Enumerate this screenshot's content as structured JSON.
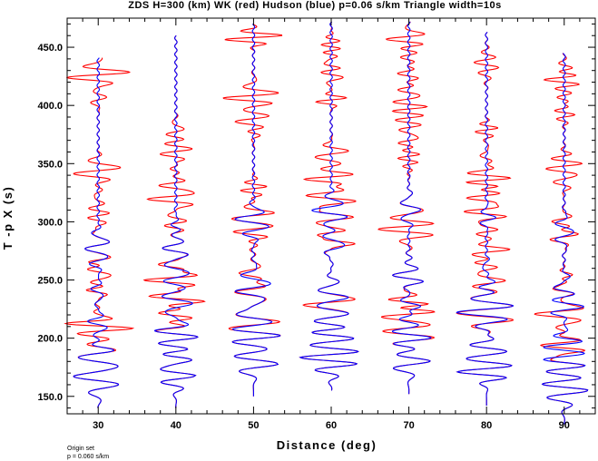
{
  "chart_data": {
    "type": "line",
    "title": "ZDS H=300 (km) WK (red) Hudson (blue) p=0.06 s/km Triangle width=10s",
    "xlabel": "Distance (deg)",
    "ylabel": "T -p X (s)",
    "xlim": [
      26,
      94
    ],
    "ylim": [
      135,
      475
    ],
    "x_ticks": [
      30,
      40,
      50,
      60,
      70,
      80,
      90
    ],
    "y_ticks": [
      150,
      200,
      250,
      300,
      350,
      400,
      450
    ],
    "y_tick_labels": [
      "150.0",
      "200.0",
      "250.0",
      "300.0",
      "350.0",
      "400.0",
      "450.0"
    ],
    "footnote": [
      "Origin set",
      "p = 0.060 s/km"
    ],
    "colors": {
      "WK": "#ff0000",
      "Hudson": "#0000ff",
      "axes": "#000000"
    },
    "traces": [
      {
        "distance": 30,
        "t_start": 140,
        "t_end": 441
      },
      {
        "distance": 40,
        "t_start": 140,
        "t_end": 460
      },
      {
        "distance": 50,
        "t_start": 150,
        "t_end": 470
      },
      {
        "distance": 60,
        "t_start": 155,
        "t_end": 472
      },
      {
        "distance": 70,
        "t_start": 152,
        "t_end": 472
      },
      {
        "distance": 80,
        "t_start": 142,
        "t_end": 463
      },
      {
        "distance": 90,
        "t_start": 126,
        "t_end": 445
      }
    ]
  }
}
